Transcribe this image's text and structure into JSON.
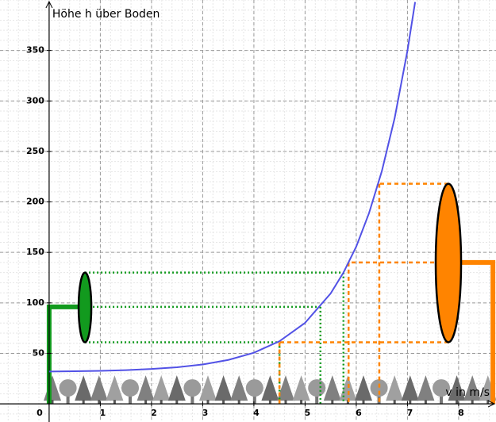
{
  "chart_data": {
    "type": "line",
    "ylabel": "Höhe h über Boden",
    "xlabel": "v in m/s",
    "x": [
      0,
      0.5,
      1,
      1.5,
      2,
      2.5,
      3,
      3.5,
      4,
      4.5,
      5,
      5.5,
      5.75,
      6,
      6.25,
      6.5,
      6.75,
      7,
      7.15
    ],
    "series": [
      {
        "color": "#5252e6",
        "values": [
          32.0,
          32.3,
          32.7,
          33.4,
          34.5,
          36.2,
          39.0,
          43.5,
          50.6,
          62.0,
          80.2,
          109.4,
          130,
          155.8,
          189,
          230.5,
          283,
          349.8,
          398
        ]
      }
    ],
    "xlim": [
      -0.96,
      8.73
    ],
    "ylim": [
      -18,
      400
    ],
    "xticks": [
      0,
      1,
      2,
      3,
      4,
      5,
      6,
      7,
      8
    ],
    "yticks": [
      50,
      100,
      150,
      200,
      250,
      300,
      350
    ],
    "grid": true,
    "guides": [
      {
        "color": "#129a1e",
        "levels": [
          61,
          96,
          130
        ],
        "xs": [
          4.5,
          5.3,
          5.75
        ],
        "ellipse_x": 0.7,
        "post": 0
      },
      {
        "color": "#ff8400",
        "levels": [
          61,
          140,
          218
        ],
        "xs": [
          4.5,
          5.85,
          6.45
        ],
        "ellipse_x": 7.8,
        "post": 8.67
      }
    ]
  }
}
